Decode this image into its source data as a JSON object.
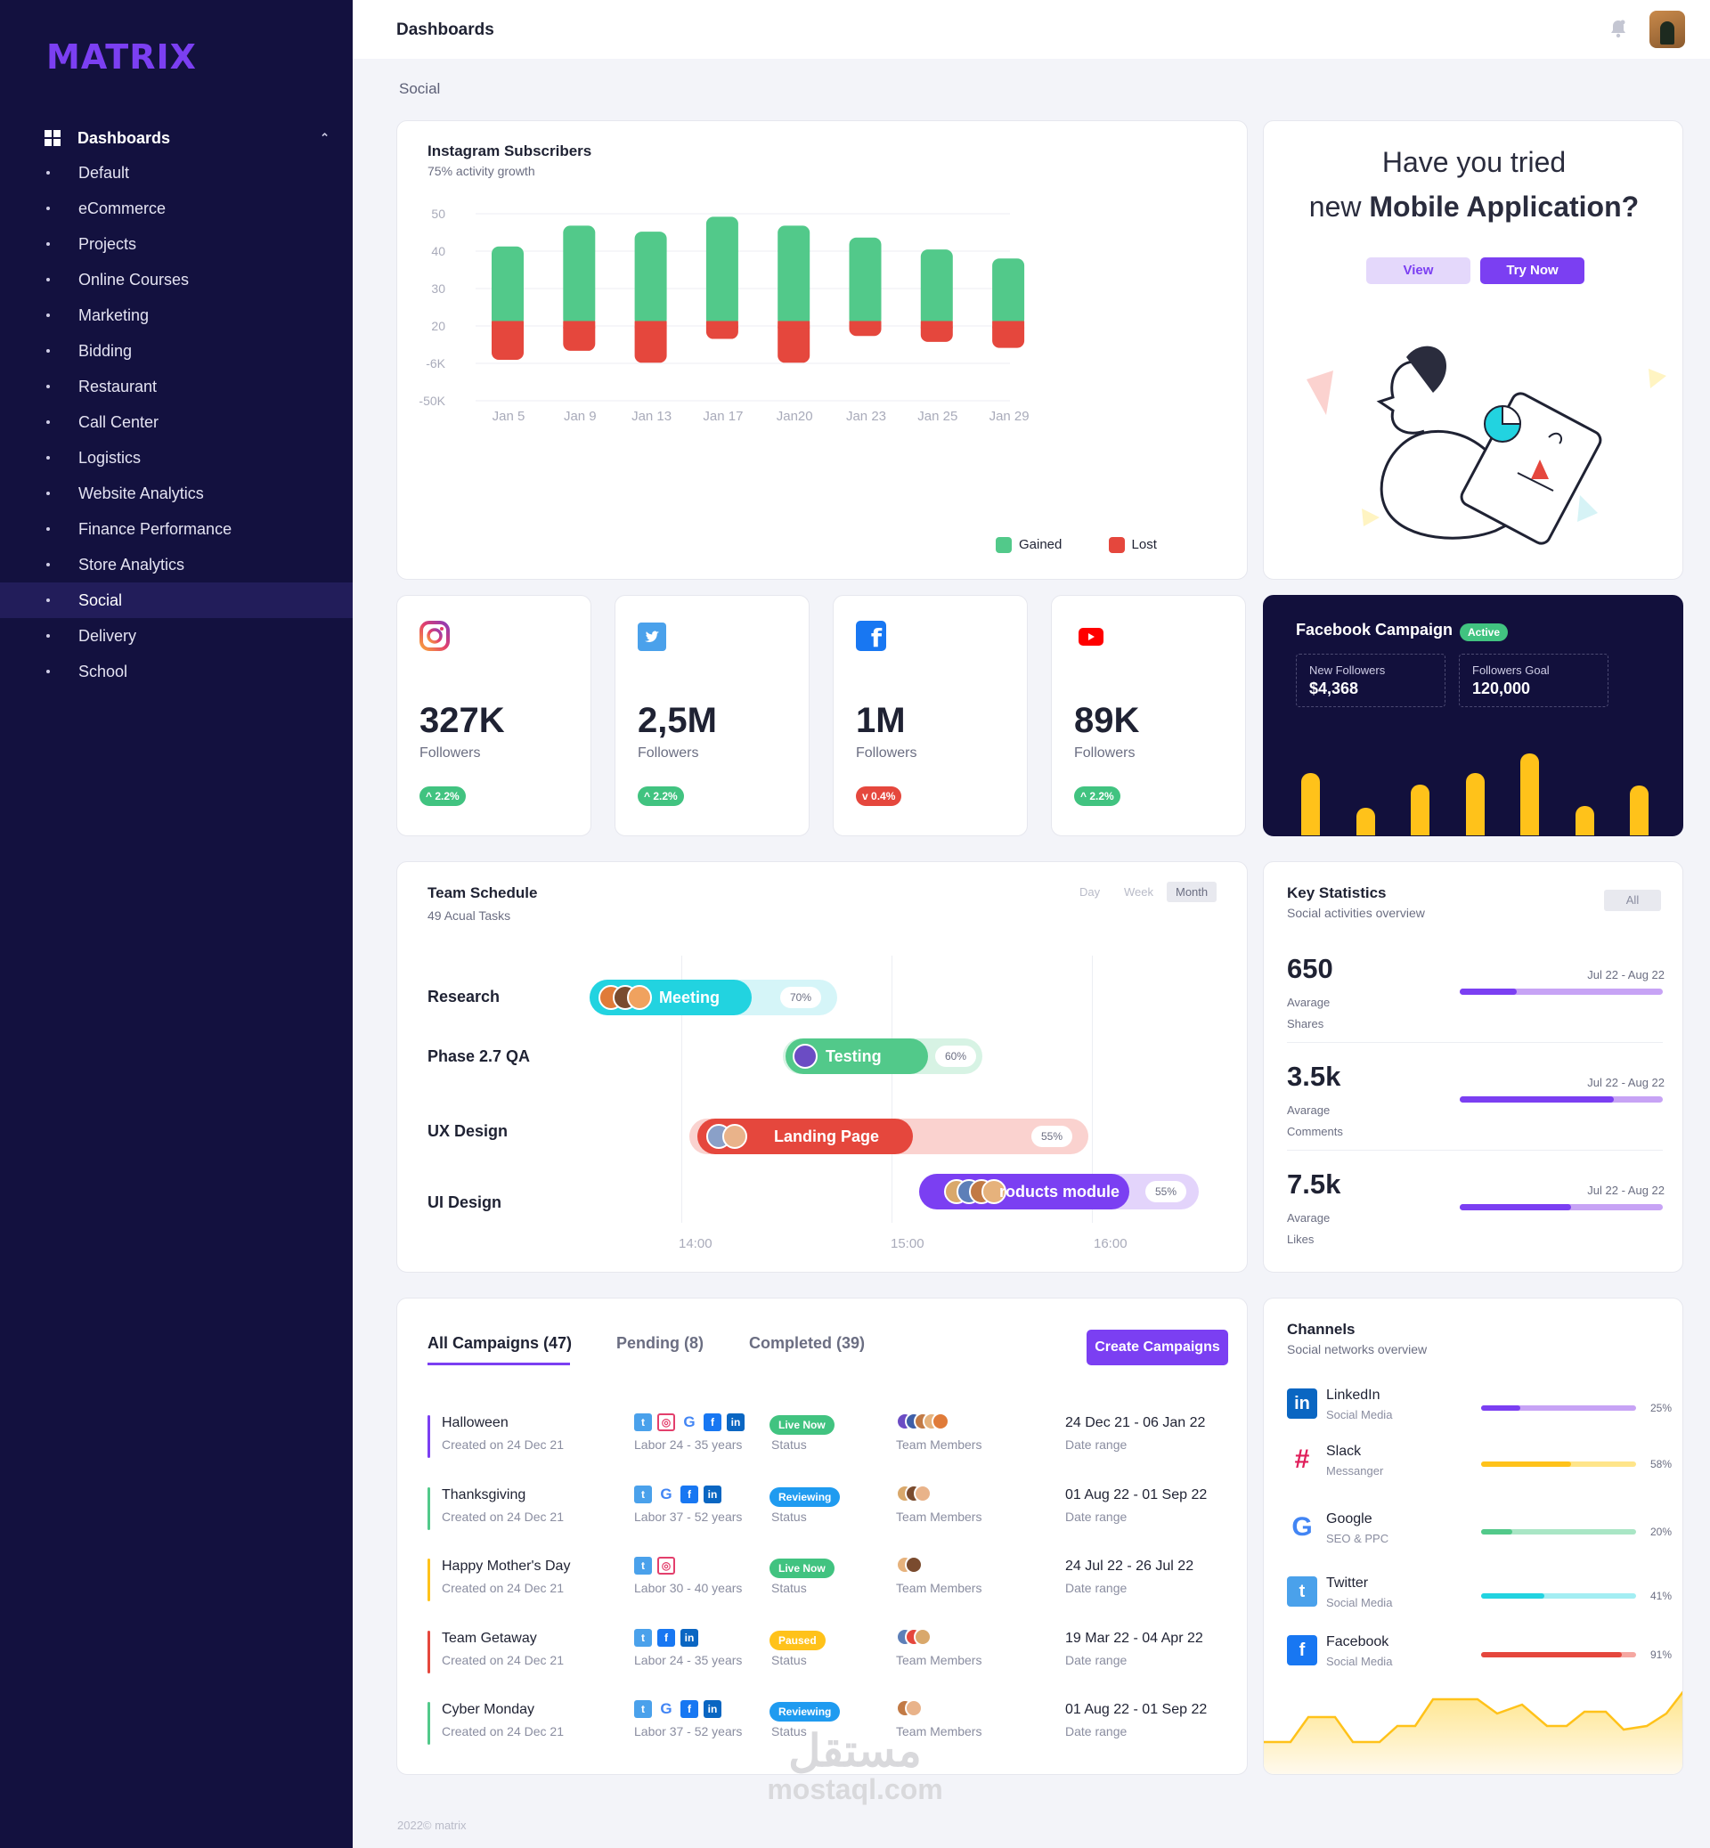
{
  "app": {
    "logo": "MATRIX",
    "page_title": "Dashboards",
    "breadcrumb": "Social",
    "footer": "2022© matrix",
    "watermark_ar": "مستقل",
    "watermark_en": "mostaql.com"
  },
  "sidebar": {
    "section": "Dashboards",
    "items": [
      "Default",
      "eCommerce",
      "Projects",
      "Online Courses",
      "Marketing",
      "Bidding",
      "Restaurant",
      "Call Center",
      "Logistics",
      "Website Analytics",
      "Finance Performance",
      "Store Analytics",
      "Social",
      "Delivery",
      "School"
    ],
    "active": "Social"
  },
  "instagram": {
    "title": "Instagram Subscribers",
    "subtitle": "75% activity growth",
    "legend_gained": "Gained",
    "legend_lost": "Lost",
    "colors": {
      "gained": "#52c98a",
      "lost": "#e5473d"
    }
  },
  "chart_data": {
    "type": "bar",
    "title": "Instagram Subscribers",
    "categories": [
      "Jan 5",
      "Jan 9",
      "Jan 13",
      "Jan 17",
      "Jan20",
      "Jan 23",
      "Jan 25",
      "Jan 29"
    ],
    "y_tick_labels": [
      "50",
      "40",
      "30",
      "20",
      "-6K",
      "-50K"
    ],
    "series": [
      {
        "name": "Gained",
        "values": [
          25,
          32,
          30,
          35,
          32,
          28,
          24,
          21
        ]
      },
      {
        "name": "Lost",
        "values": [
          -13,
          -10,
          -14,
          -6,
          -14,
          -5,
          -7,
          -9
        ]
      }
    ],
    "ylim": [
      -16,
      36
    ]
  },
  "promo": {
    "line1": "Have you tried",
    "line2_pre": "new ",
    "line2_bold": "Mobile Application?",
    "view": "View",
    "try": "Try Now"
  },
  "social_stats": [
    {
      "icon": "instagram-icon",
      "value": "327K",
      "label": "Followers",
      "change": "2.2%",
      "dir": "up"
    },
    {
      "icon": "twitter-icon",
      "value": "2,5M",
      "label": "Followers",
      "change": "2.2%",
      "dir": "up"
    },
    {
      "icon": "facebook-icon",
      "value": "1M",
      "label": "Followers",
      "change": "0.4%",
      "dir": "down"
    },
    {
      "icon": "youtube-icon",
      "value": "89K",
      "label": "Followers",
      "change": "2.2%",
      "dir": "up"
    }
  ],
  "fb_campaign": {
    "title": "Facebook Campaign",
    "badge": "Active",
    "new_followers_label": "New Followers",
    "new_followers": "$4,368",
    "goal_label": "Followers Goal",
    "goal": "120,000",
    "bars": [
      0.55,
      0.25,
      0.45,
      0.55,
      0.72,
      0.27,
      0.44
    ]
  },
  "schedule": {
    "title": "Team Schedule",
    "subtitle": "49 Acual Tasks",
    "segments": [
      "Day",
      "Week",
      "Month"
    ],
    "active_segment": "Month",
    "times": [
      "14:00",
      "15:00",
      "16:00"
    ],
    "rows": [
      {
        "name": "Research",
        "task": "Meeting",
        "pct": "70%"
      },
      {
        "name": "Phase 2.7 QA",
        "task": "Testing",
        "pct": "60%"
      },
      {
        "name": "UX Design",
        "task": "Landing Page",
        "pct": "55%"
      },
      {
        "name": "UI Design",
        "task": "roducts module",
        "pct": "55%"
      }
    ]
  },
  "key_stats": {
    "title": "Key Statistics",
    "subtitle": "Social activities overview",
    "filter": "All",
    "items": [
      {
        "value": "650",
        "l1": "Avarage",
        "l2": "Shares",
        "date": "Jul 22 - Aug 22",
        "progress": 0.28
      },
      {
        "value": "3.5k",
        "l1": "Avarage",
        "l2": "Comments",
        "date": "Jul 22 - Aug 22",
        "progress": 0.76
      },
      {
        "value": "7.5k",
        "l1": "Avarage",
        "l2": "Likes",
        "date": "Jul 22 - Aug 22",
        "progress": 0.55
      }
    ]
  },
  "campaigns": {
    "tabs": [
      "All Campaigns (47)",
      "Pending (8)",
      "Completed (39)"
    ],
    "create": "Create Campaigns",
    "status_label": "Status",
    "team_label": "Team Members",
    "date_label": "Date range",
    "rows": [
      {
        "name": "Halloween",
        "created": "Created on 24 Dec 21",
        "labor": "Labor 24 - 35 years",
        "status": "Live Now",
        "color": "#7b3ff2",
        "socials": [
          "tw",
          "ig",
          "g",
          "fb",
          "in"
        ],
        "date": "24 Dec 21 - 06 Jan 22"
      },
      {
        "name": "Thanksgiving",
        "created": "Created on 24 Dec 21",
        "labor": "Labor 37 - 52 years",
        "status": "Reviewing",
        "color": "#52c98a",
        "socials": [
          "tw",
          "g",
          "fb",
          "in"
        ],
        "date": "01 Aug 22 - 01 Sep 22"
      },
      {
        "name": "Happy Mother's Day",
        "created": "Created on 24 Dec 21",
        "labor": "Labor 30 - 40 years",
        "status": "Live Now",
        "color": "#ffc21a",
        "socials": [
          "tw",
          "ig"
        ],
        "date": "24 Jul 22 - 26 Jul 22"
      },
      {
        "name": "Team Getaway",
        "created": "Created on 24 Dec 21",
        "labor": "Labor 24 - 35 years",
        "status": "Paused",
        "color": "#e5473d",
        "socials": [
          "tw",
          "fb",
          "in"
        ],
        "date": "19 Mar 22 - 04 Apr 22"
      },
      {
        "name": "Cyber Monday",
        "created": "Created on 24 Dec 21",
        "labor": "Labor 37 - 52 years",
        "status": "Reviewing",
        "color": "#52c98a",
        "socials": [
          "tw",
          "g",
          "fb",
          "in"
        ],
        "date": "01 Aug 22 - 01 Sep 22"
      }
    ]
  },
  "channels": {
    "title": "Channels",
    "subtitle": "Social networks overview",
    "items": [
      {
        "name": "LinkedIn",
        "sub": "Social Media",
        "pct": "25%",
        "value": 0.25,
        "color": "#7b3ff2",
        "track": "#c7a3f5"
      },
      {
        "name": "Slack",
        "sub": "Messanger",
        "pct": "58%",
        "value": 0.58,
        "color": "#ffc21a",
        "track": "#ffe58a"
      },
      {
        "name": "Google",
        "sub": "SEO & PPC",
        "pct": "20%",
        "value": 0.2,
        "color": "#52c98a",
        "track": "#a9e6c5"
      },
      {
        "name": "Twitter",
        "sub": "Social Media",
        "pct": "41%",
        "value": 0.41,
        "color": "#22d3e0",
        "track": "#a3eef3"
      },
      {
        "name": "Facebook",
        "sub": "Social Media",
        "pct": "91%",
        "value": 0.91,
        "color": "#e5473d",
        "track": "#f5a7a1"
      }
    ]
  }
}
